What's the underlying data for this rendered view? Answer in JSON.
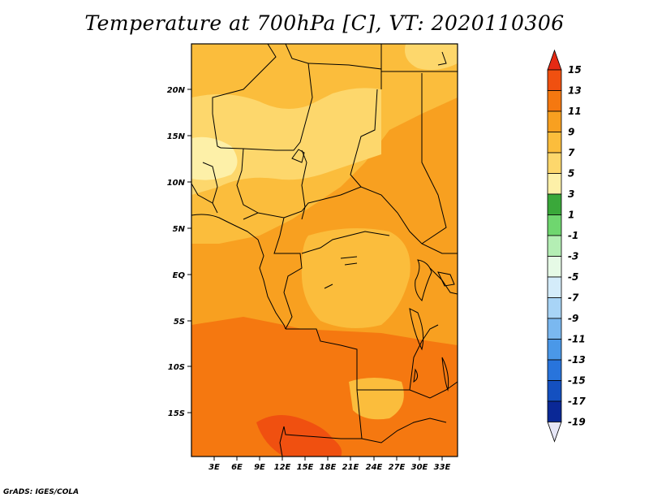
{
  "title": "Temperature at 700hPa [C], VT: 2020110306",
  "credit": "GrADS: IGES/COLA",
  "lat_labels": [
    "20N",
    "15N",
    "10N",
    "5N",
    "EQ",
    "5S",
    "10S",
    "15S"
  ],
  "lon_labels": [
    "3E",
    "6E",
    "9E",
    "12E",
    "15E",
    "18E",
    "21E",
    "24E",
    "27E",
    "30E",
    "33E"
  ],
  "colorbar": {
    "levels": [
      "15",
      "13",
      "11",
      "9",
      "7",
      "5",
      "3",
      "1",
      "-1",
      "-3",
      "-5",
      "-7",
      "-9",
      "-11",
      "-13",
      "-15",
      "-17",
      "-19"
    ],
    "colors_top_to_bottom": [
      "#e52a14",
      "#f05010",
      "#f57810",
      "#f8a020",
      "#fbbd3c",
      "#fdd76c",
      "#fdf0a8",
      "#3aa83a",
      "#6fd66f",
      "#b4eeb4",
      "#e6fae6",
      "#d4ecfa",
      "#a8d4f6",
      "#7ab8f0",
      "#4a98e8",
      "#2874dc",
      "#1450c0",
      "#0a2896",
      "#e6e6f6"
    ]
  },
  "map": {
    "field_colors": {
      "t5_7": "#fdd76c",
      "t7_9": "#fbbd3c",
      "t9_11": "#f8a020",
      "t11_13": "#f57810",
      "t13_15": "#f05010"
    }
  }
}
